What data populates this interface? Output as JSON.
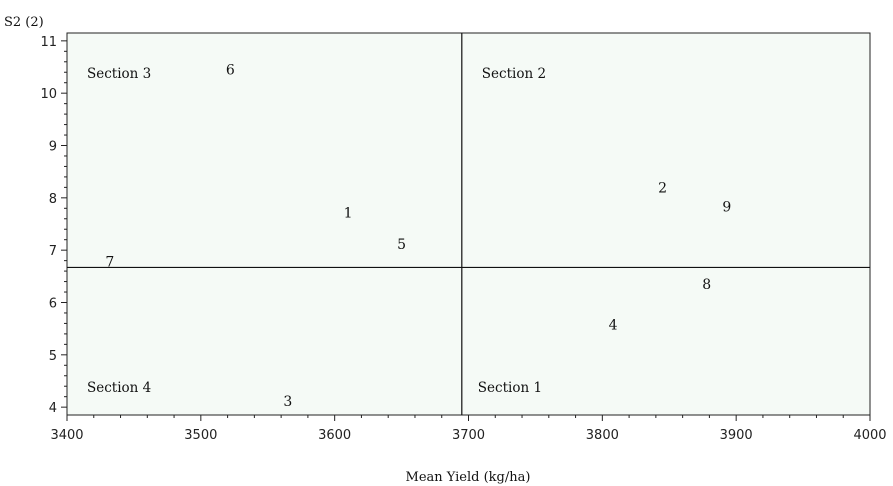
{
  "chart_data": {
    "type": "scatter",
    "title": "",
    "xlabel": "Mean Yield (kg/ha)",
    "ylabel": "S2 (2)",
    "xlim": [
      3400,
      4000
    ],
    "ylim": [
      3.85,
      11.15
    ],
    "x_ticks": [
      3400,
      3500,
      3600,
      3700,
      3800,
      3900,
      4000
    ],
    "y_ticks": [
      4,
      5,
      6,
      7,
      8,
      9,
      10,
      11
    ],
    "reference_lines": {
      "x": 3695,
      "y": 6.67
    },
    "sections": [
      {
        "label": "Section 3",
        "anchor": "top-left"
      },
      {
        "label": "Section 2",
        "anchor": "top-right"
      },
      {
        "label": "Section 4",
        "anchor": "bottom-left"
      },
      {
        "label": "Section 1",
        "anchor": "bottom-right"
      }
    ],
    "points": [
      {
        "label": "1",
        "x": 3610,
        "y": 7.72
      },
      {
        "label": "2",
        "x": 3845,
        "y": 8.2
      },
      {
        "label": "3",
        "x": 3565,
        "y": 4.12
      },
      {
        "label": "4",
        "x": 3808,
        "y": 5.58
      },
      {
        "label": "5",
        "x": 3650,
        "y": 7.12
      },
      {
        "label": "6",
        "x": 3522,
        "y": 10.45
      },
      {
        "label": "7",
        "x": 3432,
        "y": 6.78
      },
      {
        "label": "8",
        "x": 3878,
        "y": 6.35
      },
      {
        "label": "9",
        "x": 3893,
        "y": 7.83
      }
    ],
    "grid": false,
    "legend": "none"
  }
}
